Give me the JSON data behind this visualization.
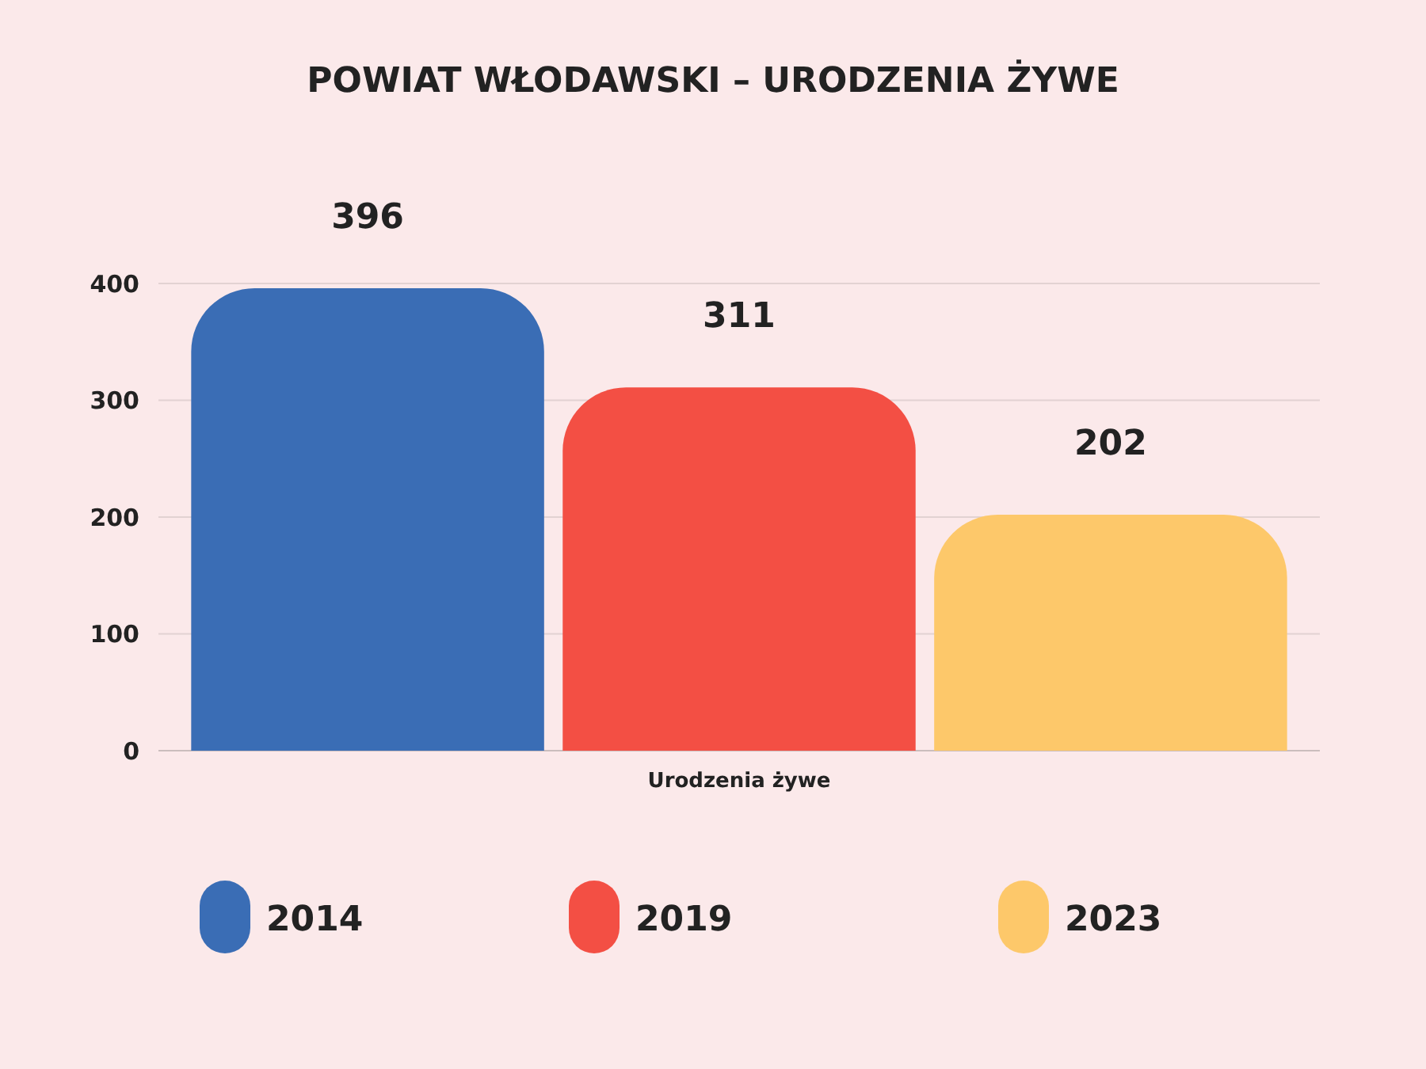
{
  "chart_data": {
    "type": "bar",
    "title": "POWIAT WŁODAWSKI – URODZENIA ŻYWE",
    "xlabel": "Urodzenia żywe",
    "categories": [
      null
    ],
    "series": [
      {
        "name": "2014",
        "color": "#3a6db5",
        "values": [
          396
        ]
      },
      {
        "name": "2019",
        "color": "#f34f44",
        "values": [
          311
        ]
      },
      {
        "name": "2023",
        "color": "#fdc86a",
        "values": [
          202
        ]
      }
    ],
    "ylim": [
      0,
      400
    ],
    "yticks": [
      0,
      100,
      200,
      300,
      400
    ],
    "grid": "y",
    "legend": "bottom",
    "data_labels": true
  }
}
